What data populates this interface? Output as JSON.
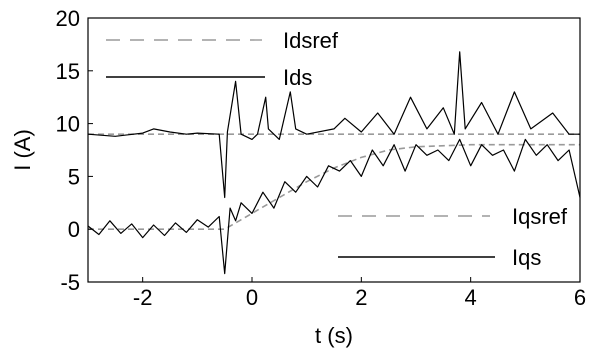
{
  "chart_data": {
    "type": "line",
    "title": "",
    "xlabel": "t (s)",
    "ylabel": "I (A)",
    "xlim": [
      -3,
      6
    ],
    "ylim": [
      -5,
      20
    ],
    "xticks": [
      -2,
      0,
      2,
      4,
      6
    ],
    "yticks": [
      -5,
      0,
      5,
      10,
      15,
      20
    ],
    "xtick_labels": [
      "-2",
      "0",
      "2",
      "4",
      "6"
    ],
    "ytick_labels": [
      "-5",
      "0",
      "5",
      "10",
      "15",
      "20"
    ],
    "grid": false,
    "legend": [
      {
        "name": "Idsref",
        "color": "#9a9a9a",
        "style": "dashed"
      },
      {
        "name": "Ids",
        "color": "#000000",
        "style": "solid"
      },
      {
        "name": "Iqsref",
        "color": "#9a9a9a",
        "style": "dashed"
      },
      {
        "name": "Iqs",
        "color": "#000000",
        "style": "solid"
      }
    ],
    "series": [
      {
        "name": "Idsref",
        "color": "#9a9a9a",
        "x": [
          -3,
          6
        ],
        "y": [
          9,
          9
        ]
      },
      {
        "name": "Ids",
        "color": "#000000",
        "x": [
          -3.0,
          -2.5,
          -2.0,
          -1.8,
          -1.5,
          -1.2,
          -1.0,
          -0.6,
          -0.5,
          -0.45,
          -0.3,
          -0.2,
          0.0,
          0.1,
          0.25,
          0.3,
          0.5,
          0.7,
          0.8,
          1.0,
          1.5,
          1.7,
          2.0,
          2.3,
          2.6,
          2.9,
          3.2,
          3.5,
          3.7,
          3.8,
          3.9,
          4.2,
          4.5,
          4.8,
          5.1,
          5.5,
          5.8,
          6.0
        ],
        "y": [
          9.0,
          8.8,
          9.1,
          9.5,
          9.2,
          9.0,
          9.1,
          9.0,
          3.0,
          9.2,
          14.0,
          9.0,
          8.5,
          9.0,
          12.5,
          9.5,
          8.5,
          13.0,
          9.5,
          9.0,
          9.5,
          10.5,
          9.2,
          11.0,
          9.0,
          12.5,
          9.5,
          11.5,
          9.0,
          16.8,
          9.5,
          12.0,
          9.0,
          13.0,
          9.5,
          11.0,
          9.0,
          9.0
        ]
      },
      {
        "name": "Iqsref",
        "color": "#9a9a9a",
        "x": [
          -3.0,
          -0.5,
          0.0,
          0.5,
          1.0,
          1.5,
          2.0,
          2.5,
          3.0,
          4.0,
          5.0,
          6.0
        ],
        "y": [
          0.0,
          0.0,
          1.5,
          3.0,
          4.5,
          5.8,
          6.8,
          7.5,
          7.8,
          8.0,
          8.0,
          8.0
        ]
      },
      {
        "name": "Iqs",
        "color": "#000000",
        "x": [
          -3.0,
          -2.8,
          -2.6,
          -2.4,
          -2.2,
          -2.0,
          -1.8,
          -1.6,
          -1.4,
          -1.2,
          -1.0,
          -0.8,
          -0.6,
          -0.5,
          -0.4,
          -0.3,
          -0.2,
          0.0,
          0.2,
          0.4,
          0.6,
          0.8,
          1.0,
          1.2,
          1.4,
          1.6,
          1.8,
          2.0,
          2.2,
          2.4,
          2.6,
          2.8,
          3.0,
          3.2,
          3.4,
          3.6,
          3.8,
          4.0,
          4.2,
          4.4,
          4.6,
          4.8,
          5.0,
          5.2,
          5.4,
          5.6,
          5.8,
          6.0
        ],
        "y": [
          0.3,
          -0.5,
          0.8,
          -0.4,
          0.5,
          -0.8,
          0.4,
          -0.6,
          0.6,
          -0.3,
          0.9,
          0.2,
          1.2,
          -4.2,
          2.0,
          0.8,
          2.5,
          1.5,
          3.5,
          2.0,
          4.5,
          3.5,
          5.0,
          4.0,
          6.0,
          5.5,
          6.5,
          5.0,
          7.5,
          6.0,
          8.0,
          5.5,
          8.0,
          7.0,
          7.5,
          6.5,
          8.5,
          6.0,
          8.0,
          7.0,
          7.5,
          5.5,
          8.5,
          7.0,
          8.0,
          6.5,
          7.5,
          3.0
        ]
      }
    ]
  }
}
